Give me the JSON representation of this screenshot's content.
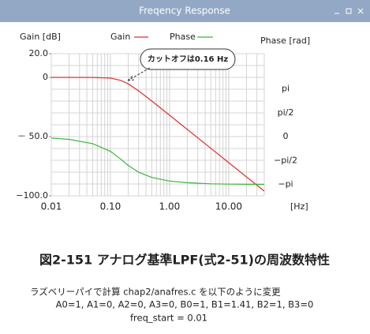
{
  "window": {
    "title": "Freqency Response"
  },
  "chart_data": {
    "type": "line",
    "xscale": "log",
    "ylabel": "Gain [dB]",
    "y2label": "Phase [rad]",
    "xlabel": "[Hz]",
    "annotation": "カットオフは0.16 Hz",
    "x": [
      0.01,
      0.02,
      0.05,
      0.1,
      0.15,
      0.2,
      0.3,
      0.5,
      1,
      2,
      5,
      10,
      20,
      40
    ],
    "series": [
      {
        "name": "Gain",
        "color": "#e03030",
        "values": [
          0,
          0,
          -0.04,
          -0.63,
          -2.53,
          -5.44,
          -11.36,
          -19.95,
          -31.95,
          -43.99,
          -59.9,
          -71.97,
          -84.0,
          -96.0
        ]
      },
      {
        "name": "Phase",
        "color": "#3cb43c",
        "axis": "y2",
        "values": [
          -0.09,
          -0.18,
          -0.46,
          -0.97,
          -1.49,
          -1.89,
          -2.34,
          -2.68,
          -2.92,
          -3.03,
          -3.1,
          -3.12,
          -3.13,
          -3.14
        ]
      }
    ],
    "xlim": [
      0.01,
      40
    ],
    "xticks": [
      0.01,
      {
        "value": 0.1,
        "label": "0.10"
      },
      {
        "value": 1,
        "label": "1.00"
      },
      {
        "value": 10,
        "label": "10.00"
      }
    ],
    "xgrid": [
      0.02,
      0.03,
      0.04,
      0.05,
      0.06,
      0.07,
      0.08,
      0.09,
      0.1,
      0.2,
      0.3,
      0.4,
      0.5,
      0.6,
      0.7,
      0.8,
      0.9,
      1,
      2,
      3,
      4,
      5,
      6,
      7,
      8,
      9,
      10,
      20,
      30,
      40
    ],
    "ylim": [
      -100,
      20
    ],
    "yticks": [
      {
        "value": 20,
        "label": "20.0"
      },
      0,
      {
        "value": -50,
        "label": "－ 50.0"
      },
      {
        "value": -100,
        "label": "−100.0"
      }
    ],
    "ygrid": [
      20,
      10,
      0,
      -10,
      -20,
      -30,
      -40,
      -50,
      -60,
      -70,
      -80,
      -90,
      -100
    ],
    "y2lim": [
      -3.89,
      5.45
    ],
    "y2ticks": [
      {
        "value": 3.1416,
        "label": "pi"
      },
      {
        "value": 1.5708,
        "label": "pi/2"
      },
      0,
      {
        "value": -1.5708,
        "label": "−pi/2"
      },
      {
        "value": -3.1416,
        "label": "−pi"
      }
    ],
    "grid": true
  },
  "caption": {
    "figure": "図2-151  アナログ基準LPF(式2-51)の周波数特性",
    "notes": [
      "ラズベリーパイで計算  chap2/anafres.c を以下のように変更",
      "A0=1, A1=0, A2=0, A3=0, B0=1, B1=1.41, B2=1, B3=0",
      "freq_start = 0.01"
    ]
  }
}
